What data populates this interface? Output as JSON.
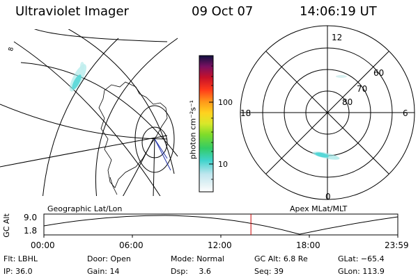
{
  "header": {
    "instrument": "Ultraviolet Imager",
    "date": "09 Oct 07",
    "time": "14:06:19 UT"
  },
  "colorbar": {
    "unit_label": "photon cm⁻²s⁻¹",
    "ticks": [
      {
        "value": 100,
        "label": "100"
      },
      {
        "value": 10,
        "label": "10"
      }
    ]
  },
  "polar_plot": {
    "hour_labels": {
      "top": "12",
      "left": "18",
      "right": "6",
      "bottom": "0"
    },
    "lat_labels": [
      "60",
      "70",
      "80"
    ]
  },
  "footer_panel": {
    "left_title": "Geographic Lat/Lon",
    "right_title": "Apex MLat/MLT",
    "y_axis_label": "GC Alt",
    "y_ticks": [
      "9.0",
      "1.8"
    ],
    "x_ticks": [
      "00:00",
      "06:00",
      "12:00",
      "18:00",
      "23:59"
    ],
    "current_time_fraction": 0.585
  },
  "info": {
    "filter_label": "Flt:",
    "filter_value": "LBHL",
    "door_label": "Door:",
    "door_value": "Open",
    "mode_label": "Mode:",
    "mode_value": "Normal",
    "alt_label": "GC Alt:",
    "alt_value": "6.8 Re",
    "glat_label": "GLat:",
    "glat_value": "−65.4",
    "ip_label": "IP:",
    "ip_value": "36.0",
    "gain_label": "Gain:",
    "gain_value": "14",
    "dsp_label": "Dsp:",
    "dsp_value": "3.6",
    "seq_label": "Seq:",
    "seq_value": "39",
    "glon_label": "GLon:",
    "glon_value": "113.9"
  },
  "colors": {
    "aurora": "#56d7d7",
    "time_marker": "#cc0000",
    "grid": "#000000"
  }
}
